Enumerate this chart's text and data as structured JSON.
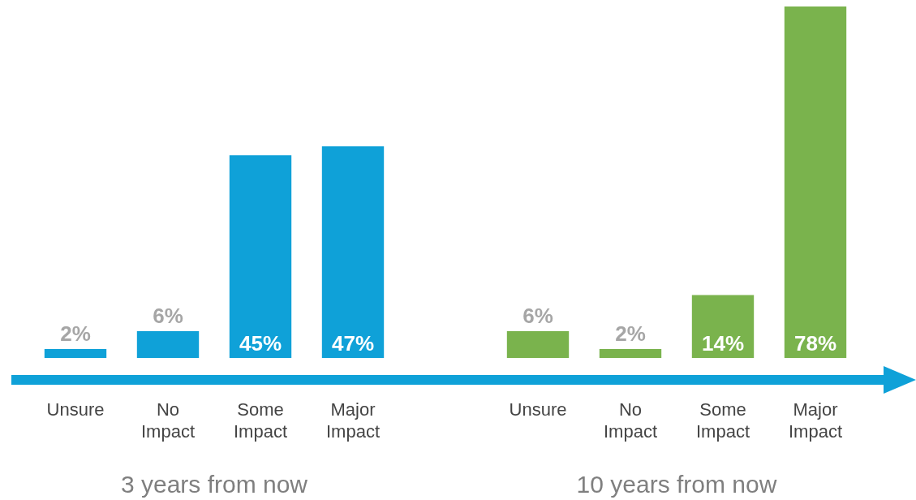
{
  "chart_data": {
    "type": "bar",
    "categories": [
      "Unsure",
      "No Impact",
      "Some Impact",
      "Major Impact",
      null,
      "Unsure",
      "No Impact",
      "Some Impact",
      "Major Impact"
    ],
    "values": [
      2,
      6,
      45,
      47,
      null,
      6,
      2,
      14,
      78
    ],
    "colors": [
      "#0fa1d8",
      "#0fa1d8",
      "#0fa1d8",
      "#0fa1d8",
      "#0fa1d8",
      "#7ab34d",
      "#7ab34d",
      "#7ab34d",
      "#7ab34d"
    ],
    "value_labels": [
      "2%",
      "6%",
      "45%",
      "47%",
      null,
      "6%",
      "2%",
      "14%",
      "78%"
    ],
    "annotations": [
      "3 years from now",
      "10 years from now"
    ],
    "grid": false,
    "legend": false
  }
}
